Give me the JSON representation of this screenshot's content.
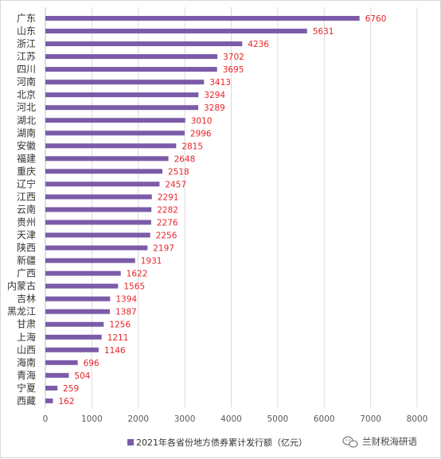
{
  "chart_data": {
    "type": "bar",
    "orientation": "horizontal",
    "categories": [
      "广东",
      "山东",
      "浙江",
      "江苏",
      "四川",
      "河南",
      "北京",
      "河北",
      "湖北",
      "湖南",
      "安徽",
      "福建",
      "重庆",
      "辽宁",
      "江西",
      "云南",
      "贵州",
      "天津",
      "陕西",
      "新疆",
      "广西",
      "内蒙古",
      "吉林",
      "黑龙江",
      "甘肃",
      "上海",
      "山西",
      "海南",
      "青海",
      "宁夏",
      "西藏"
    ],
    "series": [
      {
        "name": "2021年各省份地方债券累计发行额（亿元）",
        "color": "#7b5ba8",
        "values": [
          6760,
          5631,
          4236,
          3702,
          3695,
          3413,
          3294,
          3289,
          3010,
          2996,
          2815,
          2648,
          2518,
          2457,
          2291,
          2282,
          2276,
          2256,
          2197,
          1931,
          1622,
          1565,
          1394,
          1387,
          1256,
          1211,
          1146,
          696,
          504,
          259,
          162
        ]
      }
    ],
    "xlim": [
      0,
      8000
    ],
    "xticks": [
      "0",
      "1000",
      "2000",
      "3000",
      "4000",
      "5000",
      "6000",
      "7000",
      "8000"
    ],
    "data_label_color": "#e8242a",
    "grid": true,
    "legend_position": "bottom"
  },
  "watermark": {
    "text": "兰财税海研语",
    "icon": "wechat-icon"
  }
}
